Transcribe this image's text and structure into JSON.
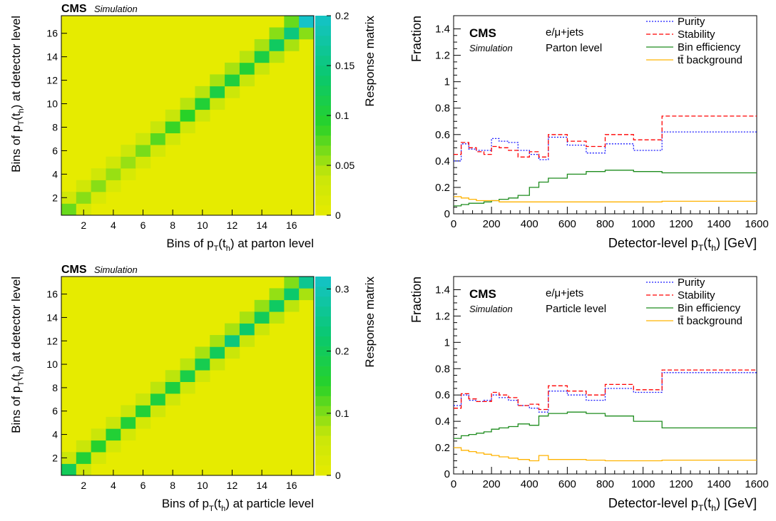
{
  "chart_data": [
    {
      "type": "heatmap",
      "cms_label": "CMS",
      "sim_label": "Simulation",
      "xlabel": "Bins of p_T(t_h) at parton level",
      "xlabel_parts": {
        "pre": "Bins of p",
        "sub": "T",
        "mid": "(t",
        "sub2": "h",
        "post": ") at parton level"
      },
      "ylabel_parts": {
        "pre": "Bins of p",
        "sub": "T",
        "mid": "(t",
        "sub2": "h",
        "post": ") at detector level"
      },
      "zlabel": "Response matrix",
      "n_bins": 17,
      "x_ticks": [
        "2",
        "4",
        "6",
        "8",
        "10",
        "12",
        "14",
        "16"
      ],
      "y_ticks": [
        "2",
        "4",
        "6",
        "8",
        "10",
        "12",
        "14",
        "16"
      ],
      "zlim": [
        0,
        0.2
      ],
      "z_ticks": [
        {
          "v": 0,
          "label": "0"
        },
        {
          "v": 0.05,
          "label": "0.05"
        },
        {
          "v": 0.1,
          "label": "0.1"
        },
        {
          "v": 0.15,
          "label": "0.15"
        },
        {
          "v": 0.2,
          "label": "0.2"
        }
      ],
      "diagonal": [
        0.07,
        0.06,
        0.06,
        0.055,
        0.055,
        0.065,
        0.075,
        0.085,
        0.09,
        0.1,
        0.11,
        0.105,
        0.1,
        0.11,
        0.13,
        0.15,
        0.2
      ],
      "off_upper": [
        0.03,
        0.03,
        0.03,
        0.03,
        0.035,
        0.035,
        0.04,
        0.04,
        0.045,
        0.045,
        0.05,
        0.05,
        0.045,
        0.05,
        0.06,
        0.07
      ],
      "off_lower": [
        0.02,
        0.02,
        0.02,
        0.02,
        0.025,
        0.025,
        0.03,
        0.03,
        0.035,
        0.035,
        0.035,
        0.04,
        0.04,
        0.045,
        0.05,
        0.06
      ]
    },
    {
      "type": "line",
      "cms_label": "CMS",
      "sim_label": "Simulation",
      "channel_label": "e/μ+jets",
      "level_label": "Parton level",
      "ylabel": "Fraction",
      "xlabel": "Detector-level p_T(t_h) [GeV]",
      "xlabel_parts": {
        "pre": "Detector-level p",
        "sub": "T",
        "mid": "(t",
        "sub2": "h",
        "post": ") [GeV]"
      },
      "xlim": [
        0,
        1600
      ],
      "ylim": [
        0,
        1.5
      ],
      "x_ticks": [
        0,
        200,
        400,
        600,
        800,
        1000,
        1200,
        1400,
        1600
      ],
      "y_ticks": [
        0,
        0.2,
        0.4,
        0.6,
        0.8,
        1,
        1.2,
        1.4
      ],
      "bin_edges": [
        0,
        40,
        80,
        120,
        160,
        200,
        240,
        290,
        340,
        400,
        450,
        500,
        600,
        700,
        800,
        950,
        1100,
        1600
      ],
      "series": [
        {
          "name": "Purity",
          "color": "#1a1aff",
          "dash": "2,2",
          "values": [
            0.4,
            0.53,
            0.49,
            0.48,
            0.48,
            0.57,
            0.55,
            0.54,
            0.48,
            0.45,
            0.41,
            0.58,
            0.52,
            0.46,
            0.53,
            0.48,
            0.62
          ]
        },
        {
          "name": "Stability",
          "color": "#ff0000",
          "dash": "6,3",
          "values": [
            0.45,
            0.54,
            0.5,
            0.47,
            0.45,
            0.51,
            0.5,
            0.48,
            0.43,
            0.47,
            0.43,
            0.6,
            0.55,
            0.51,
            0.6,
            0.56,
            0.74
          ]
        },
        {
          "name": "Bin efficiency",
          "color": "#1e8c1e",
          "dash": "",
          "values": [
            0.06,
            0.07,
            0.08,
            0.08,
            0.09,
            0.1,
            0.11,
            0.12,
            0.14,
            0.2,
            0.24,
            0.27,
            0.3,
            0.32,
            0.33,
            0.32,
            0.31
          ]
        },
        {
          "name": "tt̄ background",
          "color": "#ffb300",
          "dash": "",
          "values": [
            0.13,
            0.12,
            0.11,
            0.1,
            0.1,
            0.1,
            0.09,
            0.09,
            0.09,
            0.09,
            0.09,
            0.09,
            0.09,
            0.09,
            0.09,
            0.09,
            0.095
          ]
        }
      ],
      "legend_position": "top-right"
    },
    {
      "type": "heatmap",
      "cms_label": "CMS",
      "sim_label": "Simulation",
      "xlabel": "Bins of p_T(t_h) at particle level",
      "xlabel_parts": {
        "pre": "Bins of p",
        "sub": "T",
        "mid": "(t",
        "sub2": "h",
        "post": ") at particle level"
      },
      "ylabel_parts": {
        "pre": "Bins of p",
        "sub": "T",
        "mid": "(t",
        "sub2": "h",
        "post": ") at detector level"
      },
      "zlabel": "Response matrix",
      "n_bins": 17,
      "x_ticks": [
        "2",
        "4",
        "6",
        "8",
        "10",
        "12",
        "14",
        "16"
      ],
      "y_ticks": [
        "2",
        "4",
        "6",
        "8",
        "10",
        "12",
        "14",
        "16"
      ],
      "zlim": [
        0,
        0.32
      ],
      "z_ticks": [
        {
          "v": 0,
          "label": "0"
        },
        {
          "v": 0.1,
          "label": "0.1"
        },
        {
          "v": 0.2,
          "label": "0.2"
        },
        {
          "v": 0.3,
          "label": "0.3"
        }
      ],
      "diagonal": [
        0.2,
        0.16,
        0.15,
        0.16,
        0.16,
        0.16,
        0.17,
        0.17,
        0.18,
        0.19,
        0.2,
        0.24,
        0.22,
        0.2,
        0.21,
        0.22,
        0.26
      ],
      "off_upper": [
        0.06,
        0.06,
        0.06,
        0.06,
        0.06,
        0.06,
        0.07,
        0.07,
        0.07,
        0.08,
        0.08,
        0.08,
        0.08,
        0.09,
        0.09,
        0.1
      ],
      "off_lower": [
        0.05,
        0.04,
        0.04,
        0.04,
        0.04,
        0.05,
        0.05,
        0.05,
        0.05,
        0.06,
        0.06,
        0.06,
        0.06,
        0.07,
        0.07,
        0.08
      ]
    },
    {
      "type": "line",
      "cms_label": "CMS",
      "sim_label": "Simulation",
      "channel_label": "e/μ+jets",
      "level_label": "Particle level",
      "ylabel": "Fraction",
      "xlabel": "Detector-level p_T(t_h) [GeV]",
      "xlabel_parts": {
        "pre": "Detector-level p",
        "sub": "T",
        "mid": "(t",
        "sub2": "h",
        "post": ") [GeV]"
      },
      "xlim": [
        0,
        1600
      ],
      "ylim": [
        0,
        1.5
      ],
      "x_ticks": [
        0,
        200,
        400,
        600,
        800,
        1000,
        1200,
        1400,
        1600
      ],
      "y_ticks": [
        0,
        0.2,
        0.4,
        0.6,
        0.8,
        1,
        1.2,
        1.4
      ],
      "bin_edges": [
        0,
        40,
        80,
        120,
        160,
        200,
        240,
        290,
        340,
        400,
        450,
        500,
        600,
        700,
        800,
        950,
        1100,
        1600
      ],
      "series": [
        {
          "name": "Purity",
          "color": "#1a1aff",
          "dash": "2,2",
          "values": [
            0.52,
            0.6,
            0.56,
            0.55,
            0.56,
            0.6,
            0.58,
            0.56,
            0.52,
            0.5,
            0.47,
            0.63,
            0.6,
            0.56,
            0.65,
            0.62,
            0.77
          ]
        },
        {
          "name": "Stability",
          "color": "#ff0000",
          "dash": "6,3",
          "values": [
            0.5,
            0.61,
            0.57,
            0.55,
            0.55,
            0.62,
            0.6,
            0.58,
            0.52,
            0.53,
            0.49,
            0.67,
            0.63,
            0.6,
            0.68,
            0.64,
            0.79
          ]
        },
        {
          "name": "Bin efficiency",
          "color": "#1e8c1e",
          "dash": "",
          "values": [
            0.27,
            0.29,
            0.3,
            0.31,
            0.32,
            0.34,
            0.35,
            0.36,
            0.38,
            0.37,
            0.44,
            0.46,
            0.47,
            0.46,
            0.44,
            0.4,
            0.35
          ]
        },
        {
          "name": "tt̄ background",
          "color": "#ffb300",
          "dash": "",
          "values": [
            0.2,
            0.18,
            0.17,
            0.16,
            0.15,
            0.14,
            0.13,
            0.12,
            0.11,
            0.1,
            0.14,
            0.11,
            0.11,
            0.105,
            0.1,
            0.1,
            0.105
          ]
        }
      ],
      "legend_position": "top-right"
    }
  ]
}
